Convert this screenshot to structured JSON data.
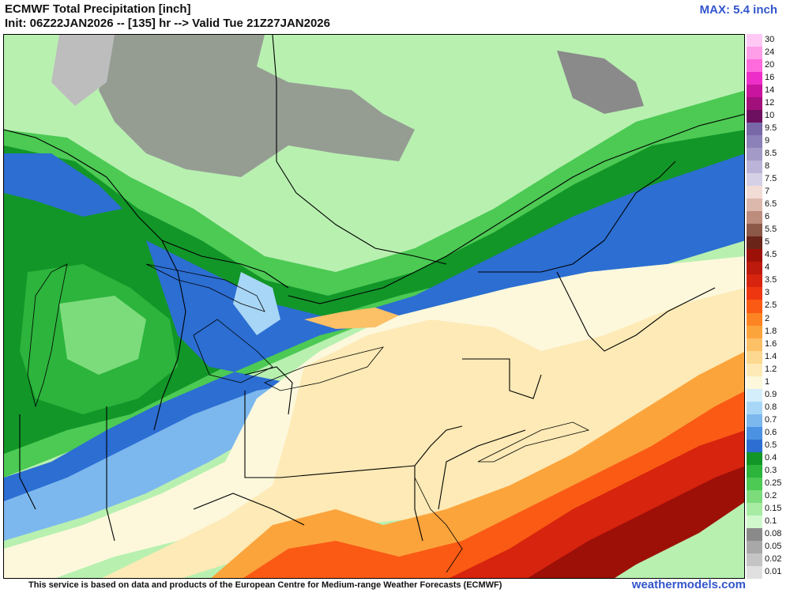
{
  "header": {
    "title": "ECMWF Total Precipitation [inch]",
    "subtitle": "Init: 06Z22JAN2026 -- [135] hr --> Valid Tue 21Z27JAN2026",
    "max_label": "MAX: 5.4 inch"
  },
  "footer": {
    "disclaimer": "This service is based on data and products of the European Centre for Medium-range Weather Forecasts (ECMWF)",
    "brand": "weathermodels.com"
  },
  "colors": {
    "title": "#111111",
    "accent": "#3355cc"
  },
  "legend": {
    "items": [
      {
        "label": "30",
        "color": "#ffc8f5"
      },
      {
        "label": "24",
        "color": "#ff9ee8"
      },
      {
        "label": "20",
        "color": "#ff6adc"
      },
      {
        "label": "16",
        "color": "#ee2ec8"
      },
      {
        "label": "14",
        "color": "#c8149e"
      },
      {
        "label": "12",
        "color": "#a2107c"
      },
      {
        "label": "10",
        "color": "#6e1060"
      },
      {
        "label": "9.5",
        "color": "#7868a8"
      },
      {
        "label": "9",
        "color": "#8c80b8"
      },
      {
        "label": "8.5",
        "color": "#a49ac8"
      },
      {
        "label": "8",
        "color": "#bcb4d8"
      },
      {
        "label": "7.5",
        "color": "#d6d0e6"
      },
      {
        "label": "7",
        "color": "#f2ddd6"
      },
      {
        "label": "6.5",
        "color": "#dcb8ac"
      },
      {
        "label": "6",
        "color": "#bc8c7c"
      },
      {
        "label": "5.5",
        "color": "#8c5848"
      },
      {
        "label": "5",
        "color": "#6a2418"
      },
      {
        "label": "4.5",
        "color": "#9c1008"
      },
      {
        "label": "4",
        "color": "#bc1a0c"
      },
      {
        "label": "3.5",
        "color": "#d6240e"
      },
      {
        "label": "3",
        "color": "#ee3610"
      },
      {
        "label": "2.5",
        "color": "#fa5a14"
      },
      {
        "label": "2",
        "color": "#fc8422"
      },
      {
        "label": "1.8",
        "color": "#fca43c"
      },
      {
        "label": "1.6",
        "color": "#fcc066"
      },
      {
        "label": "1.4",
        "color": "#fcd890"
      },
      {
        "label": "1.2",
        "color": "#fdeab6"
      },
      {
        "label": "1",
        "color": "#fdf8dc"
      },
      {
        "label": "0.9",
        "color": "#d4eefc"
      },
      {
        "label": "0.8",
        "color": "#a8d6f6"
      },
      {
        "label": "0.7",
        "color": "#7cb8ee"
      },
      {
        "label": "0.6",
        "color": "#4c92e2"
      },
      {
        "label": "0.5",
        "color": "#2c6ed2"
      },
      {
        "label": "0.4",
        "color": "#129628"
      },
      {
        "label": "0.3",
        "color": "#2cb43c"
      },
      {
        "label": "0.25",
        "color": "#4cca54"
      },
      {
        "label": "0.2",
        "color": "#7cdc7c"
      },
      {
        "label": "0.15",
        "color": "#a8eca4"
      },
      {
        "label": "0.1",
        "color": "#d0f8cc"
      },
      {
        "label": "0.08",
        "color": "#8a8a8a"
      },
      {
        "label": "0.05",
        "color": "#a8a8a8"
      },
      {
        "label": "0.02",
        "color": "#c4c4c4"
      },
      {
        "label": "0.01",
        "color": "#e0e0e0"
      }
    ]
  }
}
